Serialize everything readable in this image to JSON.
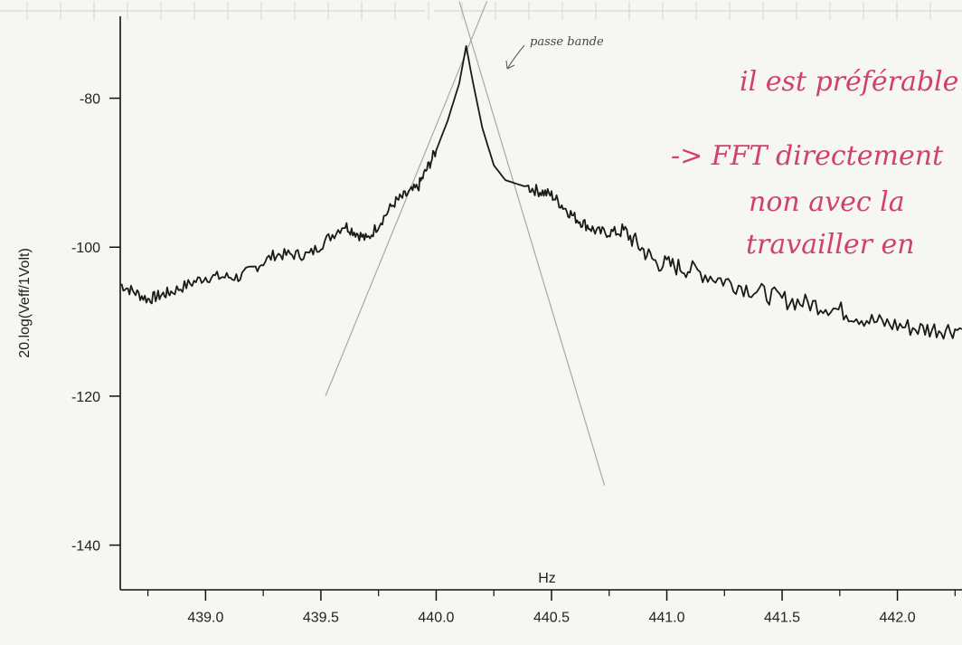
{
  "chart_data": {
    "type": "line",
    "title": "",
    "xlabel": "Hz",
    "ylabel": "20.log(Veff/1Volt)",
    "xlim": [
      438.63,
      442.28
    ],
    "ylim": [
      -146,
      -69
    ],
    "x_ticks": [
      "439.0",
      "439.5",
      "440.0",
      "440.5",
      "441.0",
      "441.5",
      "442.0"
    ],
    "y_ticks": [
      "-80",
      "-100",
      "-120",
      "-140"
    ],
    "grid": false,
    "series": [
      {
        "color": "#1a1a1a",
        "x": [
          438.63,
          438.75,
          438.85,
          439.0,
          439.15,
          439.3,
          439.45,
          439.6,
          439.7,
          439.82,
          439.92,
          440.0,
          440.05,
          440.1,
          440.13,
          440.16,
          440.2,
          440.25,
          440.3,
          440.4,
          440.5,
          440.6,
          440.7,
          440.82,
          440.95,
          441.1,
          441.3,
          441.5,
          441.7,
          441.9,
          442.1,
          442.28
        ],
        "y": [
          -105,
          -107,
          -106,
          -104,
          -104,
          -101,
          -101,
          -97,
          -99,
          -94,
          -92,
          -87,
          -83,
          -78,
          -73,
          -78,
          -84,
          -89,
          -91,
          -92,
          -93,
          -96,
          -98,
          -98,
          -102,
          -103,
          -105,
          -107,
          -108,
          -110,
          -111,
          -111
        ]
      }
    ],
    "guide_lines": [
      {
        "x": [
          439.52,
          440.22
        ],
        "y": [
          -120,
          -67
        ]
      },
      {
        "x": [
          440.1,
          440.73
        ],
        "y": [
          -67,
          -132
        ]
      }
    ]
  },
  "annotations": {
    "peak_label": "passe bande",
    "note_lines": [
      "il est préférable",
      "-> FFT directement",
      "non avec la",
      "travailler en"
    ]
  },
  "colors": {
    "ink": "#1a1a1a",
    "pencil": "#a8a8a8",
    "note_ink": "#d1406e",
    "paper": "#f6f6f3"
  }
}
